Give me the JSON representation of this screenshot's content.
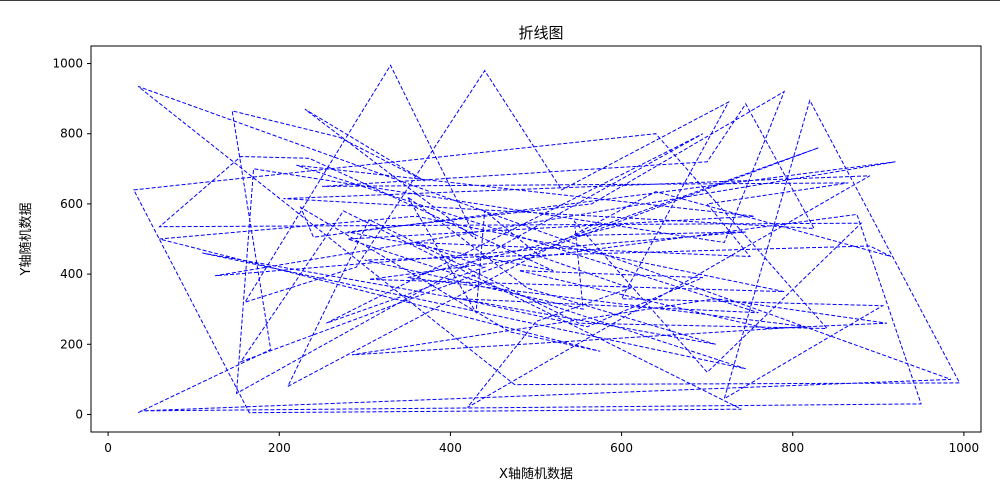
{
  "chart_data": {
    "type": "line",
    "title": "折线图",
    "xlabel": "X轴随机数据",
    "ylabel": "Y轴随机数据",
    "xlim": [
      -20,
      1020
    ],
    "ylim": [
      -50,
      1050
    ],
    "xticks": [
      0,
      200,
      400,
      600,
      800,
      1000
    ],
    "yticks": [
      0,
      200,
      400,
      600,
      800,
      1000
    ],
    "grid": false,
    "legend": "none",
    "line_style": "dashed",
    "line_color": "#0000ff",
    "series": [
      {
        "x": [
          35,
          190,
          145,
          270,
          370,
          230,
          430,
          330,
          160,
          290,
          440,
          530,
          725,
          600,
          905,
          720,
          820,
          995,
          475,
          35,
          985,
          38,
          950,
          875,
          305,
          790,
          360,
          60,
          575,
          470,
          225,
          240,
          920,
          125,
          745,
          545,
          830,
          155,
          275,
          740,
          165,
          30,
          640,
          840,
          550,
          305,
          210,
          640,
          915,
          890,
          300,
          555,
          545,
          700,
          880,
          60,
          155,
          235,
          520,
          280,
          565,
          790,
          720,
          170,
          150,
          695,
          255,
          440,
          360,
          750,
          700,
          865,
          250,
          700,
          745,
          825,
          205,
          890,
          420,
          500,
          610,
          505,
          440,
          430,
          350,
          490,
          710,
          110,
          745,
          280,
          755,
          220,
          760,
          410,
          560,
          695,
          480,
          770,
          910,
          710,
          285,
          815,
          350,
          600
        ],
        "y": [
          5,
          185,
          865,
          790,
          665,
          870,
          500,
          995,
          320,
          420,
          980,
          640,
          890,
          330,
          310,
          45,
          895,
          90,
          85,
          935,
          100,
          10,
          30,
          570,
          385,
          350,
          565,
          500,
          180,
          235,
          590,
          505,
          720,
          395,
          520,
          510,
          760,
          150,
          580,
          15,
          5,
          640,
          800,
          245,
          260,
          555,
          80,
          635,
          450,
          480,
          440,
          300,
          550,
          120,
          545,
          535,
          735,
          730,
          410,
          520,
          600,
          920,
          490,
          700,
          60,
          800,
          260,
          420,
          490,
          450,
          600,
          660,
          650,
          720,
          885,
          530,
          615,
          680,
          20,
          265,
          360,
          450,
          580,
          290,
          620,
          360,
          200,
          460,
          130,
          500,
          565,
          710,
          290,
          330,
          250,
          390,
          410,
          245,
          260,
          330,
          170,
          250,
          390,
          540
        ]
      }
    ]
  }
}
